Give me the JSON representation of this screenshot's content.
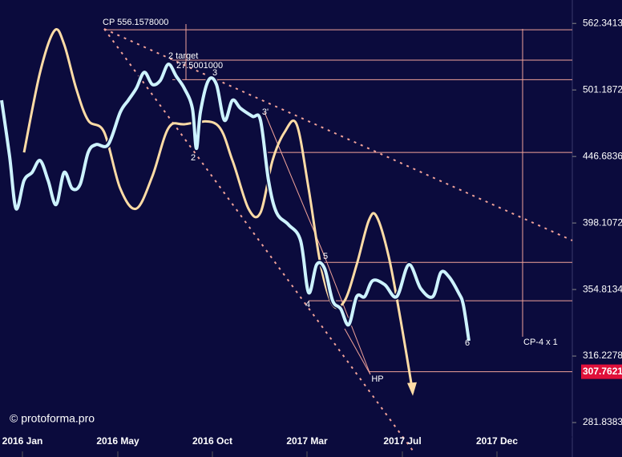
{
  "chart_data": {
    "type": "line",
    "log_scale": true,
    "x": [
      2,
      12,
      20,
      30,
      40,
      50,
      60,
      70,
      80,
      90,
      100,
      110,
      120,
      135,
      150,
      160,
      170,
      180,
      190,
      200,
      210,
      220,
      230,
      240,
      245,
      250,
      260,
      270,
      280,
      290,
      300,
      315,
      325,
      335,
      345,
      360,
      375,
      385,
      395,
      405,
      415,
      425,
      435,
      445,
      455,
      465,
      480,
      495,
      510,
      525,
      540,
      550,
      560,
      572,
      578,
      585
    ],
    "xlim": [
      0,
      714
    ],
    "xticks": [
      {
        "value": 28,
        "label": "2016 Jan"
      },
      {
        "value": 147,
        "label": "2016 May"
      },
      {
        "value": 265,
        "label": "2016 Oct"
      },
      {
        "value": 383,
        "label": "2017 Mar"
      },
      {
        "value": 502,
        "label": "2017 Jul"
      },
      {
        "value": 620,
        "label": "2017 Dec"
      }
    ],
    "ylim": [
      274.9,
      585.6
    ],
    "yticks": [
      562.3413,
      501.1872,
      446.6836,
      398.1072,
      354.8134,
      316.2278,
      281.8383
    ],
    "series": [
      {
        "name": "price",
        "color": "#cdf3ff",
        "values": [
          492.3,
          446.7,
          408.1,
          428.5,
          434.5,
          443.6,
          428.5,
          411.0,
          434.5,
          422.6,
          425.6,
          449.8,
          456.0,
          456.0,
          482.2,
          492.3,
          502.5,
          516.7,
          506.0,
          509.5,
          524.0,
          513.1,
          502.5,
          485.5,
          452.9,
          482.2,
          509.5,
          506.0,
          475.5,
          492.3,
          485.5,
          478.8,
          475.5,
          428.5,
          405.3,
          396.9,
          386.1,
          352.9,
          370.4,
          367.9,
          348.0,
          343.2,
          333.8,
          350.5,
          350.5,
          360.3,
          357.8,
          350.5,
          370.4,
          355.3,
          350.5,
          365.4,
          362.8,
          352.9,
          345.6,
          324.7
        ]
      },
      {
        "name": "forecast",
        "color": "#ffdca6",
        "x": [
          30,
          50,
          68,
          80,
          95,
          110,
          130,
          150,
          170,
          190,
          210,
          230,
          270,
          290,
          310,
          325,
          340,
          355,
          370,
          385,
          400,
          415,
          430,
          445,
          460,
          470,
          485,
          500,
          515
        ],
        "values": [
          449.8,
          516.7,
          555.4,
          542.4,
          502.5,
          475.5,
          465.8,
          422.6,
          408.1,
          431.5,
          469.0,
          472.3,
          472.3,
          443.6,
          408.1,
          405.3,
          443.6,
          465.8,
          472.3,
          422.6,
          370.4,
          345.6,
          348.0,
          370.4,
          399.7,
          402.5,
          375.5,
          336.1,
          296.8
        ]
      }
    ],
    "levels": [
      556.1578,
      527.7,
      510.2,
      449.8,
      371.9,
      348.0
    ],
    "last_price": 307.7621,
    "last_price_color": "#e0103a",
    "annotations": [
      "CP 556.1578000",
      "2 target",
      "27.5001000",
      "3",
      "2",
      "3'",
      "5",
      "4",
      "6",
      "HP",
      "CP-4 x 1"
    ],
    "watermark": "© protoforma.pro"
  }
}
